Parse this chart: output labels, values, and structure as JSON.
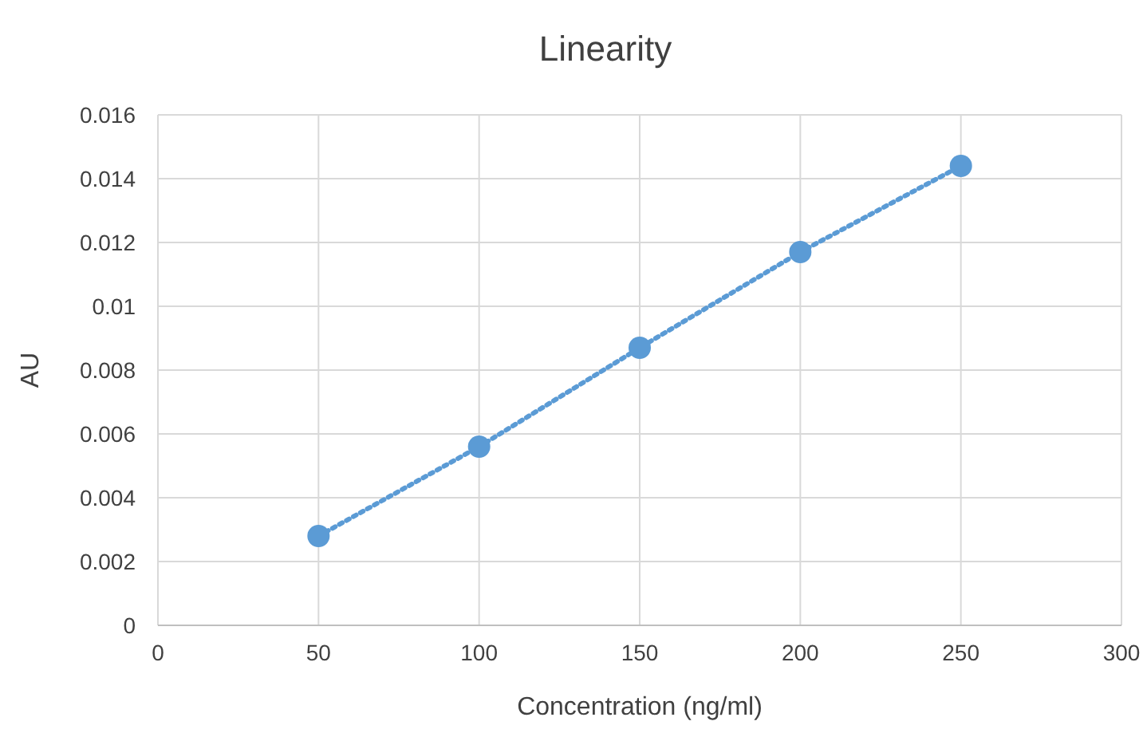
{
  "chart_data": {
    "type": "line",
    "title": "Linearity",
    "xlabel": "Concentration (ng/ml)",
    "ylabel": "AU",
    "x": [
      50,
      100,
      150,
      200,
      250
    ],
    "series": [
      {
        "color": "#5b9bd5",
        "values": [
          0.0028,
          0.0056,
          0.0087,
          0.0117,
          0.0144
        ]
      }
    ],
    "xlim": [
      0,
      300
    ],
    "xticks": [
      0,
      50,
      100,
      150,
      200,
      250,
      300
    ],
    "ylim": [
      0,
      0.016
    ],
    "yticks": [
      0,
      0.002,
      0.004,
      0.006,
      0.008,
      0.01,
      0.012,
      0.014,
      0.016
    ],
    "grid": true,
    "marker": "circle",
    "line_style": "dotted"
  }
}
